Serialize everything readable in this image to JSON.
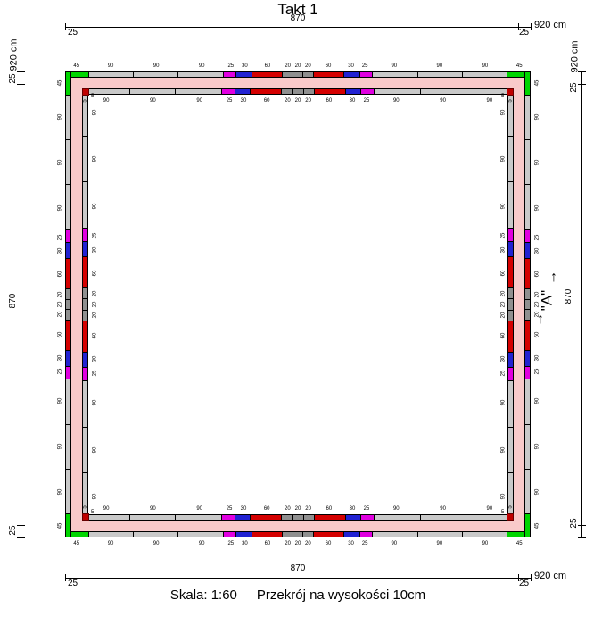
{
  "title": "Takt 1",
  "caption": {
    "scale_label": "Skala: 1:60",
    "section_label": "Przekrój na wysokości 10cm"
  },
  "dim": {
    "total": "920 cm",
    "span": "870",
    "end": "25"
  },
  "section_marker": {
    "label": "\"A\"",
    "arrow": "↑"
  },
  "wall": {
    "colors": {
      "corner": "#00d500",
      "std": "#c9c9c9",
      "w25": "#e000e0",
      "w30": "#2222d2",
      "w60": "#d40000",
      "w20": "#8f8f8f",
      "wall_fill": "#f9caca",
      "inner_corner": "#c00000"
    },
    "inner_corner_size_label": "5",
    "outer_segments": [
      {
        "len": 45,
        "type": "corner",
        "label": "45"
      },
      {
        "len": 90,
        "type": "std",
        "label": "90"
      },
      {
        "len": 90,
        "type": "std",
        "label": "90"
      },
      {
        "len": 90,
        "type": "std",
        "label": "90"
      },
      {
        "len": 25,
        "type": "w25",
        "label": "25"
      },
      {
        "len": 30,
        "type": "w30",
        "label": "30"
      },
      {
        "len": 60,
        "type": "w60",
        "label": "60"
      },
      {
        "len": 20,
        "type": "w20",
        "label": "20"
      },
      {
        "len": 20,
        "type": "w20",
        "label": "20"
      },
      {
        "len": 20,
        "type": "w20",
        "label": "20"
      },
      {
        "len": 60,
        "type": "w60",
        "label": "60"
      },
      {
        "len": 30,
        "type": "w30",
        "label": "30"
      },
      {
        "len": 25,
        "type": "w25",
        "label": "25"
      },
      {
        "len": 90,
        "type": "std",
        "label": "90"
      },
      {
        "len": 90,
        "type": "std",
        "label": "90"
      },
      {
        "len": 90,
        "type": "std",
        "label": "90"
      },
      {
        "len": 45,
        "type": "corner",
        "label": "45"
      }
    ],
    "inner_segments": [
      {
        "len": 90,
        "type": "std",
        "label": "90"
      },
      {
        "len": 90,
        "type": "std",
        "label": "90"
      },
      {
        "len": 90,
        "type": "std",
        "label": "90"
      },
      {
        "len": 25,
        "type": "w25",
        "label": "25"
      },
      {
        "len": 30,
        "type": "w30",
        "label": "30"
      },
      {
        "len": 60,
        "type": "w60",
        "label": "60"
      },
      {
        "len": 20,
        "type": "w20",
        "label": "20"
      },
      {
        "len": 20,
        "type": "w20",
        "label": "20"
      },
      {
        "len": 20,
        "type": "w20",
        "label": "20"
      },
      {
        "len": 60,
        "type": "w60",
        "label": "60"
      },
      {
        "len": 30,
        "type": "w30",
        "label": "30"
      },
      {
        "len": 25,
        "type": "w25",
        "label": "25"
      },
      {
        "len": 90,
        "type": "std",
        "label": "90"
      },
      {
        "len": 90,
        "type": "std",
        "label": "90"
      },
      {
        "len": 90,
        "type": "std",
        "label": "90"
      }
    ]
  }
}
